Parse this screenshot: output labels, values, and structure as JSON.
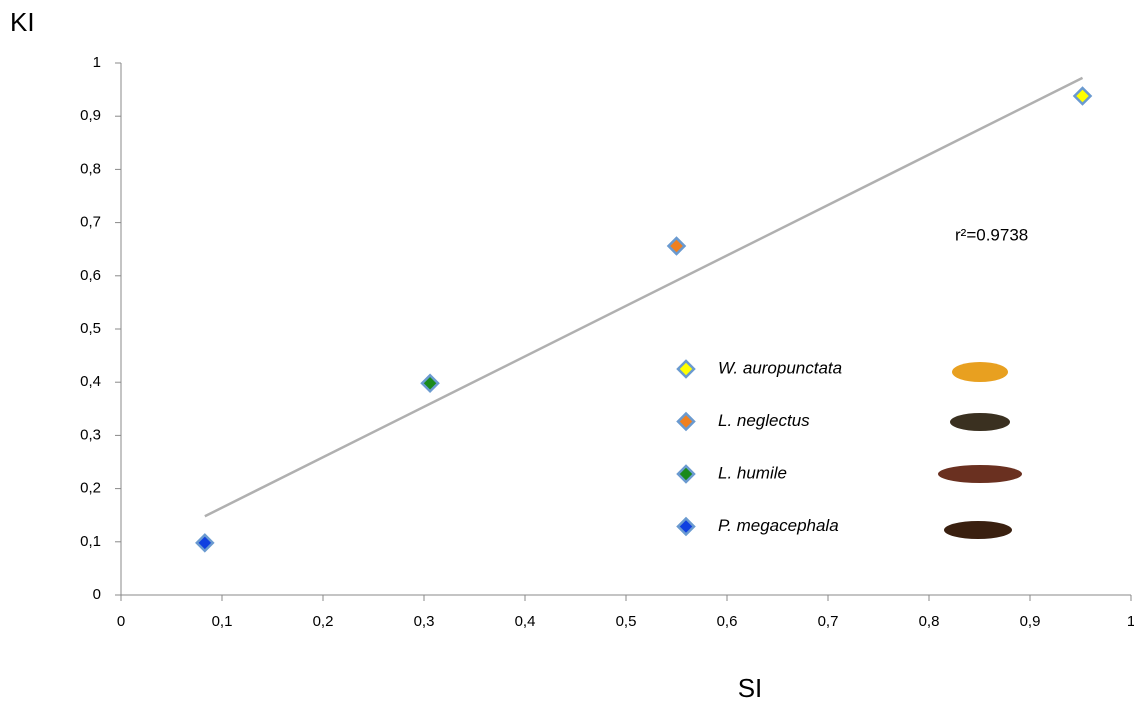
{
  "chart_data": {
    "type": "scatter",
    "x_label": "SI",
    "y_label": "KI",
    "annotation": "r²=0.9738",
    "xlim": [
      0,
      1
    ],
    "ylim": [
      0,
      1
    ],
    "xticks": [
      0,
      {
        "value": 0.1,
        "label": "0,1"
      },
      {
        "value": 0.2,
        "label": "0,2"
      },
      {
        "value": 0.3,
        "label": "0,3"
      },
      {
        "value": 0.4,
        "label": "0,4"
      },
      {
        "value": 0.5,
        "label": "0,5"
      },
      {
        "value": 0.6,
        "label": "0,6"
      },
      {
        "value": 0.7,
        "label": "0,7"
      },
      {
        "value": 0.8,
        "label": "0,8"
      },
      {
        "value": 0.9,
        "label": "0,9"
      },
      1
    ],
    "yticks": [
      0,
      {
        "value": 0.1,
        "label": "0,1"
      },
      {
        "value": 0.2,
        "label": "0,2"
      },
      {
        "value": 0.3,
        "label": "0,3"
      },
      {
        "value": 0.4,
        "label": "0,4"
      },
      {
        "value": 0.5,
        "label": "0,5"
      },
      {
        "value": 0.6,
        "label": "0,6"
      },
      {
        "value": 0.7,
        "label": "0,7"
      },
      {
        "value": 0.8,
        "label": "0,8"
      },
      {
        "value": 0.9,
        "label": "0,9"
      },
      1
    ],
    "trendline": {
      "color": "#b0b0b0",
      "x": [
        0.083,
        0.952
      ],
      "y": [
        0.148,
        0.972
      ]
    },
    "series": [
      {
        "name": "W. auropunctata",
        "color": "#ffff00",
        "x": [
          0.952
        ],
        "values": [
          0.938
        ]
      },
      {
        "name": "L. neglectus",
        "color": "#f08020",
        "x": [
          0.55
        ],
        "values": [
          0.656
        ]
      },
      {
        "name": "L. humile",
        "color": "#1a8a1a",
        "x": [
          0.306
        ],
        "values": [
          0.398
        ]
      },
      {
        "name": "P. megacephala",
        "color": "#1040e0",
        "x": [
          0.083
        ],
        "values": [
          0.098
        ]
      }
    ]
  }
}
